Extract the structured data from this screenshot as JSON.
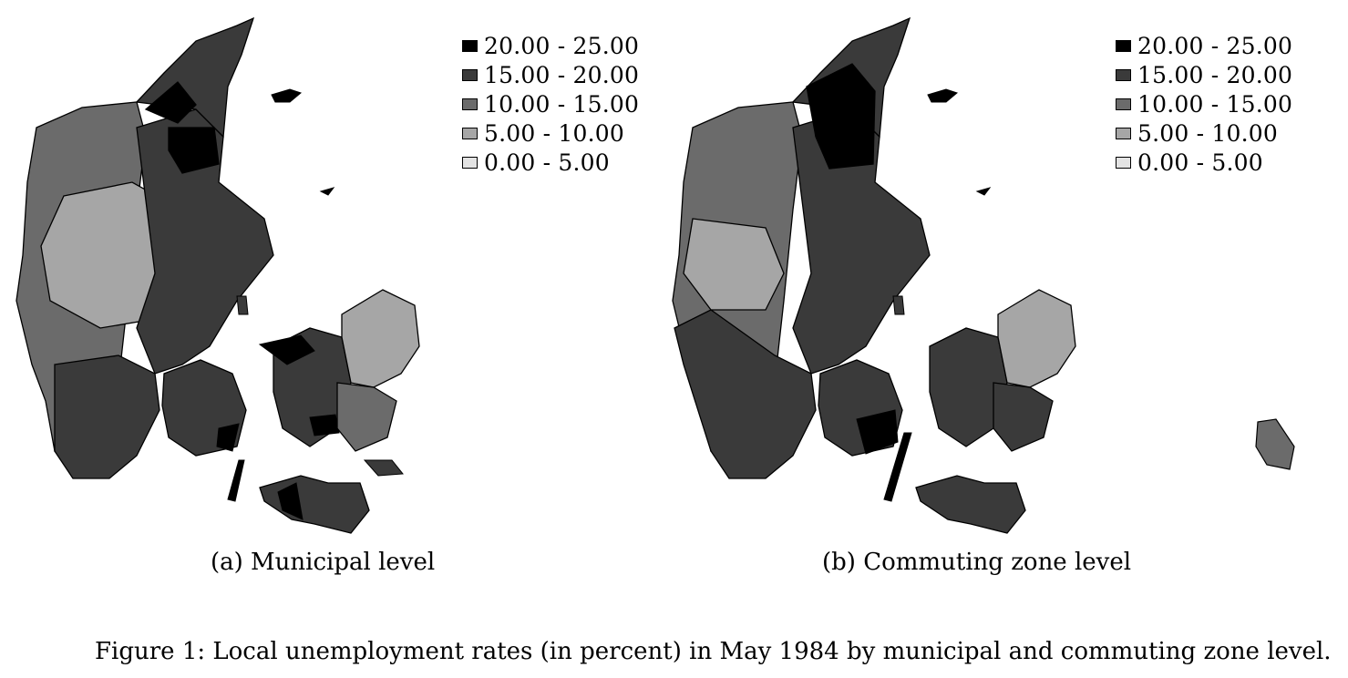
{
  "legend": {
    "items": [
      {
        "label": "20.00 - 25.00",
        "color": "#000000"
      },
      {
        "label": "15.00 - 20.00",
        "color": "#3a3a3a"
      },
      {
        "label": "10.00 - 15.00",
        "color": "#6b6b6b"
      },
      {
        "label": "5.00 - 10.00",
        "color": "#a6a6a6"
      },
      {
        "label": "0.00 - 5.00",
        "color": "#e3e3e3"
      }
    ]
  },
  "panels": {
    "a": {
      "caption": "(a) Municipal level"
    },
    "b": {
      "caption": "(b) Commuting zone level"
    }
  },
  "figure_caption": "Figure 1: Local unemployment rates (in percent) in May 1984 by municipal and commuting zone level."
}
